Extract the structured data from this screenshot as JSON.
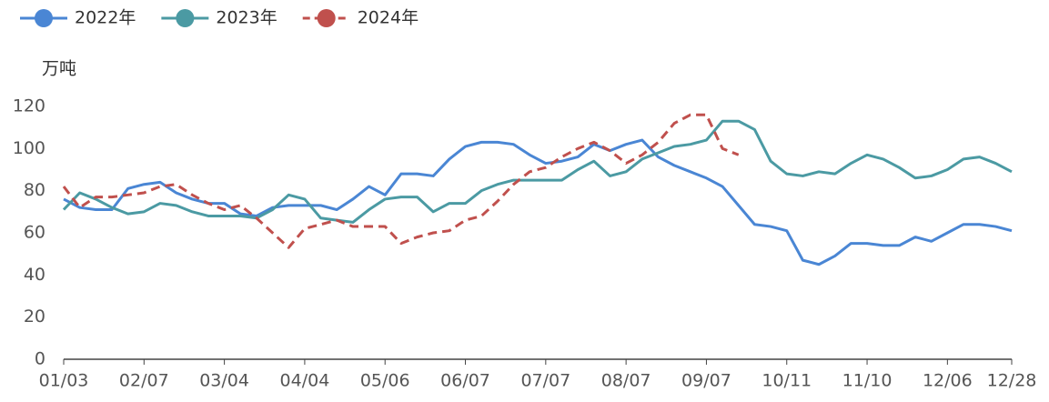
{
  "chart_data": {
    "type": "line",
    "y_label": "万吨",
    "categories": [
      "01/03",
      null,
      null,
      null,
      null,
      "02/07",
      null,
      null,
      null,
      null,
      "03/04",
      null,
      null,
      null,
      null,
      "04/04",
      null,
      null,
      null,
      null,
      "05/06",
      null,
      null,
      null,
      null,
      "06/07",
      null,
      null,
      null,
      null,
      "07/07",
      null,
      null,
      null,
      null,
      "08/07",
      null,
      null,
      null,
      null,
      "09/07",
      null,
      null,
      null,
      null,
      "10/11",
      null,
      null,
      null,
      null,
      "11/10",
      null,
      null,
      null,
      null,
      "12/06",
      null,
      null,
      null,
      "12/28"
    ],
    "series": [
      {
        "name": "2022年",
        "color": "#4a86d4",
        "dashed": false,
        "values": [
          76,
          72,
          71,
          71,
          81,
          83,
          84,
          79,
          76,
          74,
          74,
          69,
          68,
          72,
          73,
          73,
          73,
          71,
          76,
          82,
          78,
          88,
          88,
          87,
          95,
          101,
          103,
          103,
          102,
          97,
          93,
          94,
          96,
          102,
          99,
          102,
          104,
          96,
          92,
          89,
          86,
          82,
          73,
          64,
          63,
          61,
          47,
          45,
          49,
          55,
          55,
          54,
          54,
          58,
          56,
          60,
          64,
          64,
          63,
          61
        ]
      },
      {
        "name": "2023年",
        "color": "#4b9aa3",
        "dashed": false,
        "values": [
          71,
          79,
          76,
          72,
          69,
          70,
          74,
          73,
          70,
          68,
          68,
          68,
          67,
          71,
          78,
          76,
          67,
          66,
          65,
          71,
          76,
          77,
          77,
          70,
          74,
          74,
          80,
          83,
          85,
          85,
          85,
          85,
          90,
          94,
          87,
          89,
          95,
          98,
          101,
          102,
          104,
          113,
          113,
          109,
          94,
          88,
          87,
          89,
          88,
          93,
          97,
          95,
          91,
          86,
          87,
          90,
          95,
          96,
          93,
          89
        ]
      },
      {
        "name": "2024年",
        "color": "#c0504d",
        "dashed": true,
        "values": [
          82,
          72,
          77,
          77,
          78,
          79,
          82,
          83,
          78,
          74,
          71,
          73,
          67,
          60,
          53,
          62,
          64,
          66,
          63,
          63,
          63,
          55,
          58,
          60,
          61,
          66,
          68,
          75,
          83,
          89,
          91,
          96,
          100,
          103,
          99,
          93,
          97,
          103,
          112,
          116,
          116,
          100,
          97,
          null,
          null,
          null,
          null,
          null,
          null,
          null,
          null,
          null,
          null,
          null,
          null,
          null,
          null,
          null,
          null,
          null
        ]
      }
    ],
    "ylim": [
      0,
      120
    ],
    "yticks": [
      0,
      20,
      40,
      60,
      80,
      100,
      120
    ],
    "grid": false,
    "legend": "top-left"
  }
}
